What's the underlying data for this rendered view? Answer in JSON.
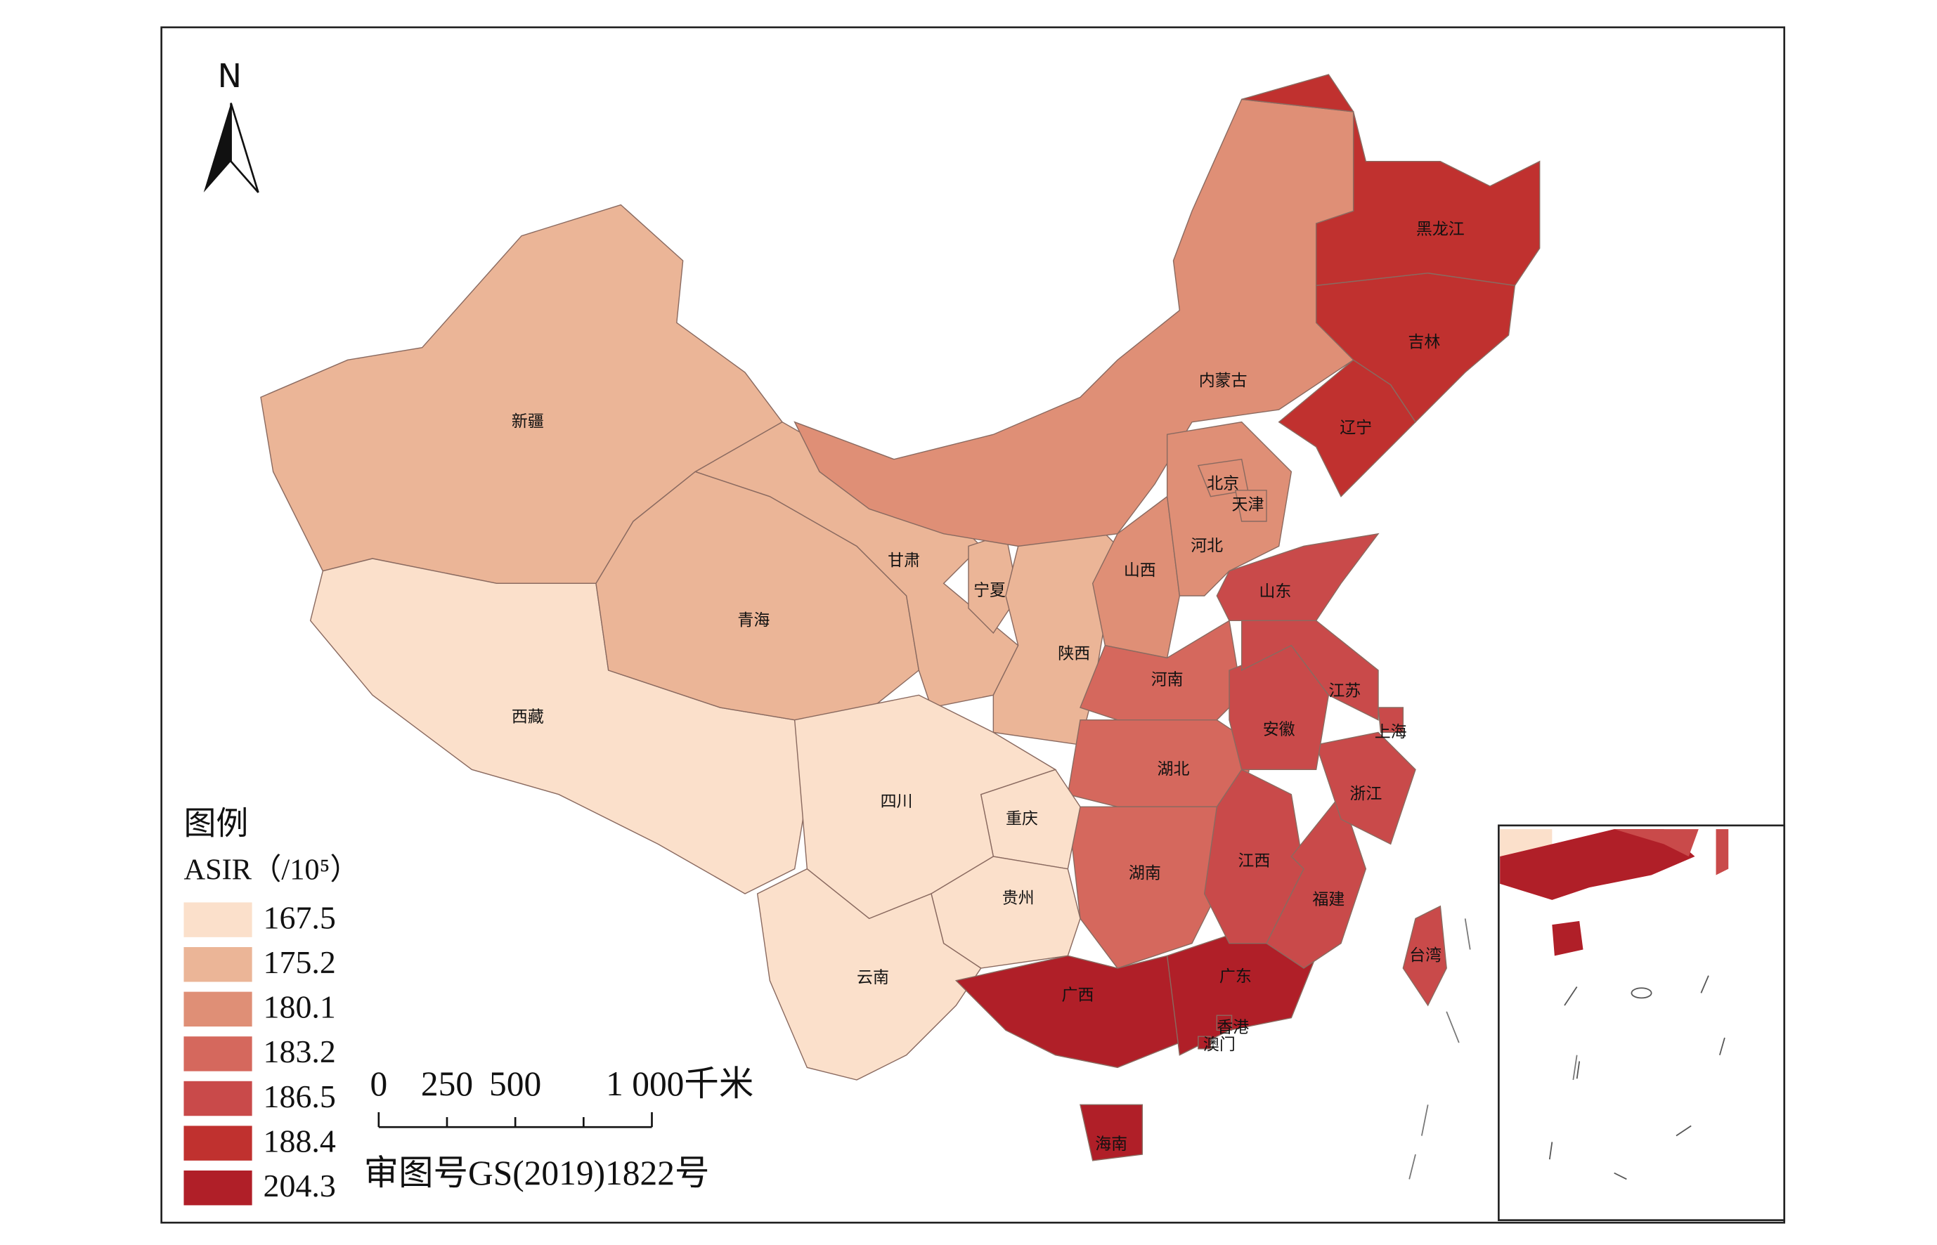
{
  "north": "N",
  "legend": {
    "title": "图例",
    "subtitle": "ASIR（/10⁵）",
    "items": [
      {
        "value": 167.5,
        "color": "#fbe0cb"
      },
      {
        "value": 175.2,
        "color": "#ebb597"
      },
      {
        "value": 180.1,
        "color": "#df8f76"
      },
      {
        "value": 183.2,
        "color": "#d5685d"
      },
      {
        "value": 186.5,
        "color": "#c94a4a"
      },
      {
        "value": 188.4,
        "color": "#c0312f"
      },
      {
        "value": 204.3,
        "color": "#b01f28"
      }
    ]
  },
  "scale_bar": {
    "labels": [
      "0",
      "250",
      "500",
      "1 000千米"
    ]
  },
  "approval": "审图号GS(2019)1822号",
  "provinces": [
    {
      "name": "新疆",
      "color": "#ebb597"
    },
    {
      "name": "西藏",
      "color": "#fbe0cb"
    },
    {
      "name": "青海",
      "color": "#ebb597"
    },
    {
      "name": "甘肃",
      "color": "#ebb597"
    },
    {
      "name": "宁夏",
      "color": "#ebb597"
    },
    {
      "name": "陕西",
      "color": "#ebb597"
    },
    {
      "name": "内蒙古",
      "color": "#df8f76"
    },
    {
      "name": "山西",
      "color": "#df8f76"
    },
    {
      "name": "河北",
      "color": "#df8f76"
    },
    {
      "name": "北京",
      "color": "#df8f76"
    },
    {
      "name": "天津",
      "color": "#df8f76"
    },
    {
      "name": "山东",
      "color": "#c94a4a"
    },
    {
      "name": "河南",
      "color": "#d5685d"
    },
    {
      "name": "湖北",
      "color": "#d5685d"
    },
    {
      "name": "湖南",
      "color": "#d5685d"
    },
    {
      "name": "重庆",
      "color": "#fbe0cb"
    },
    {
      "name": "四川",
      "color": "#fbe0cb"
    },
    {
      "name": "贵州",
      "color": "#fbe0cb"
    },
    {
      "name": "云南",
      "color": "#fbe0cb"
    },
    {
      "name": "广西",
      "color": "#b01f28"
    },
    {
      "name": "广东",
      "color": "#b01f28"
    },
    {
      "name": "海南",
      "color": "#b01f28"
    },
    {
      "name": "香港",
      "color": "#b01f28"
    },
    {
      "name": "澳门",
      "color": "#b01f28"
    },
    {
      "name": "江西",
      "color": "#c94a4a"
    },
    {
      "name": "福建",
      "color": "#c94a4a"
    },
    {
      "name": "浙江",
      "color": "#c94a4a"
    },
    {
      "name": "安徽",
      "color": "#c94a4a"
    },
    {
      "name": "江苏",
      "color": "#c94a4a"
    },
    {
      "name": "上海",
      "color": "#c94a4a"
    },
    {
      "name": "辽宁",
      "color": "#c0312f"
    },
    {
      "name": "吉林",
      "color": "#c0312f"
    },
    {
      "name": "黑龙江",
      "color": "#c0312f"
    },
    {
      "name": "台湾",
      "color": "#c94a4a"
    }
  ]
}
